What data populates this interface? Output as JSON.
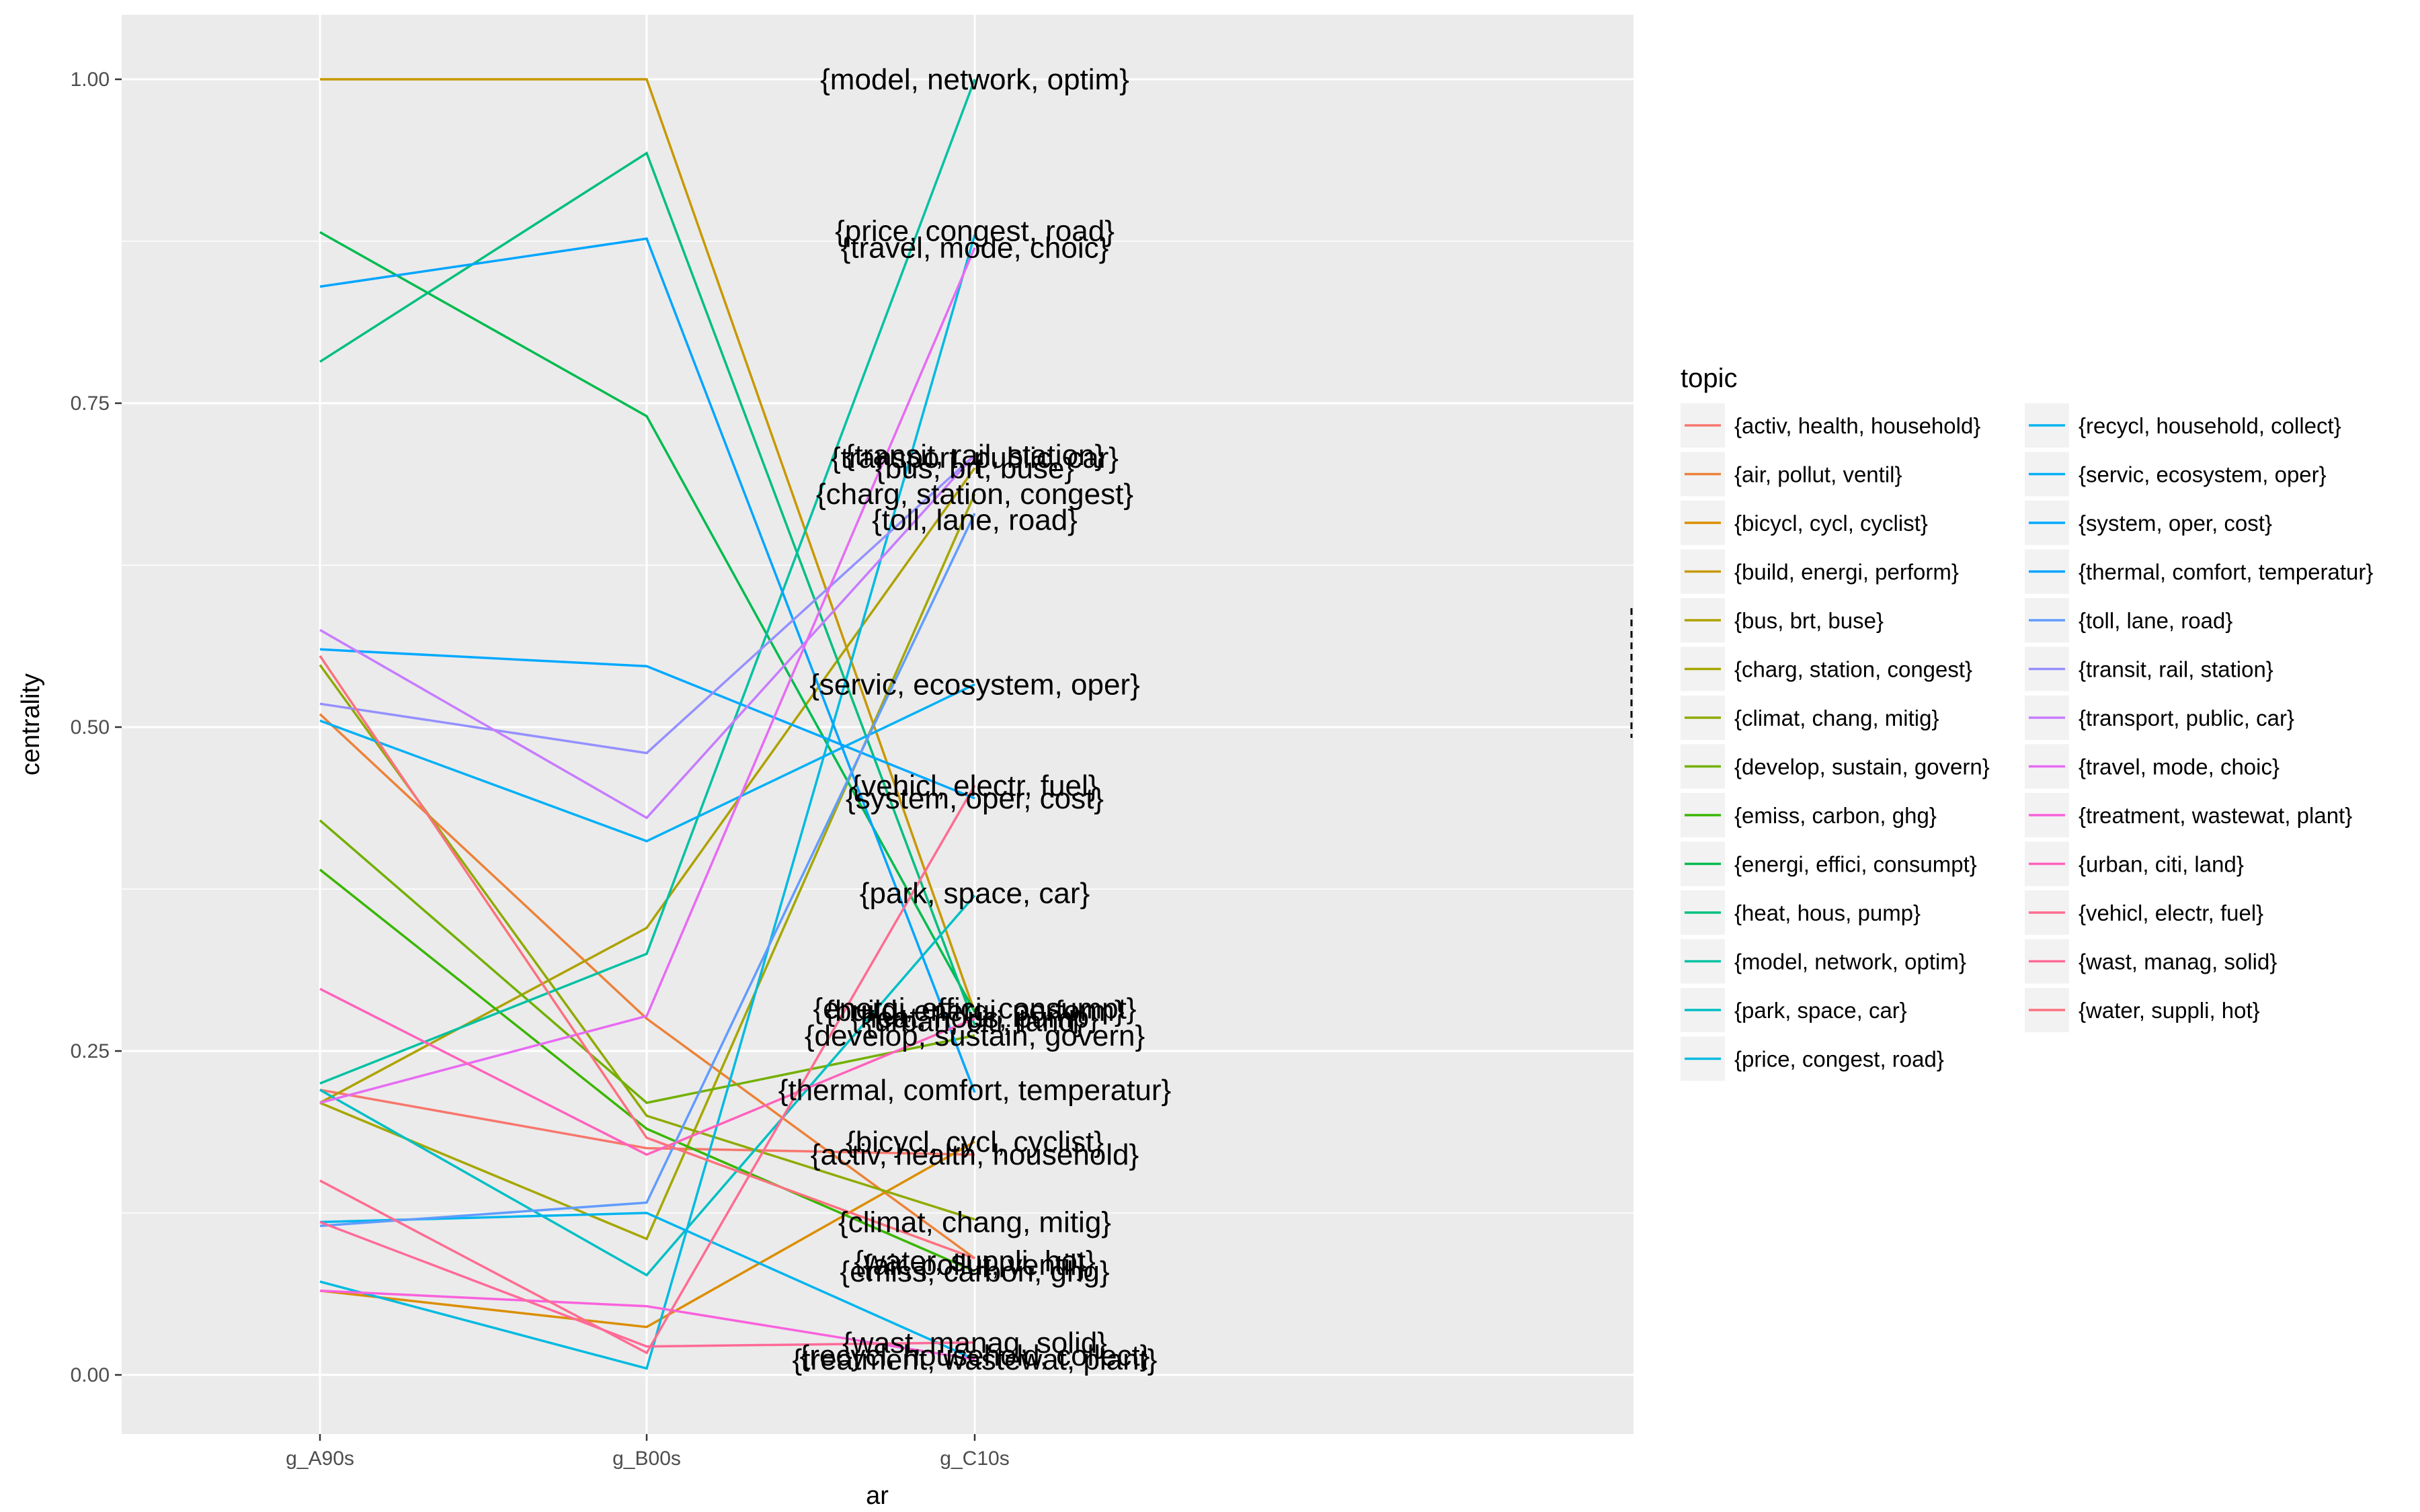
{
  "chart_data": {
    "type": "line",
    "title": "",
    "xlabel": "ar",
    "ylabel": "centrality",
    "categories": [
      "g_A90s",
      "g_B00s",
      "g_C10s"
    ],
    "ylim": [
      -0.045,
      1.05
    ],
    "yticks": [
      "0.00",
      "0.25",
      "0.50",
      "0.75",
      "1.00"
    ],
    "legend_title": "topic",
    "legend_position": "right",
    "grid": true,
    "series": [
      {
        "name": "{activ, health, household}",
        "color": "#F8766D",
        "values": [
          0.22,
          0.175,
          0.17
        ]
      },
      {
        "name": "{air, pollut, ventil}",
        "color": "#EC8239",
        "values": [
          0.51,
          0.275,
          0.09
        ]
      },
      {
        "name": "{bicycl, cycl, cyclist}",
        "color": "#DB8E00",
        "values": [
          0.065,
          0.037,
          0.18
        ]
      },
      {
        "name": "{build, energi, perform}",
        "color": "#C79800",
        "values": [
          1.0,
          1.0,
          0.28
        ]
      },
      {
        "name": "{bus, brt, buse}",
        "color": "#AEA200",
        "values": [
          0.21,
          0.345,
          0.7
        ]
      },
      {
        "name": "{charg, station, congest}",
        "color": "#A5A700",
        "values": [
          0.21,
          0.105,
          0.68
        ]
      },
      {
        "name": "{climat, chang, mitig}",
        "color": "#8FAA00",
        "values": [
          0.548,
          0.2,
          0.12
        ]
      },
      {
        "name": "{develop, sustain, govern}",
        "color": "#72B000",
        "values": [
          0.428,
          0.21,
          0.262
        ]
      },
      {
        "name": "{emiss, carbon, ghg}",
        "color": "#39B600",
        "values": [
          0.39,
          0.19,
          0.08
        ]
      },
      {
        "name": "{energi, effici, consumpt}",
        "color": "#00BB4E",
        "values": [
          0.882,
          0.74,
          0.28
        ]
      },
      {
        "name": "{heat, hous, pump}",
        "color": "#00BF7D",
        "values": [
          0.782,
          0.943,
          0.27
        ]
      },
      {
        "name": "{model, network, optim}",
        "color": "#00C1A3",
        "values": [
          0.225,
          0.325,
          1.0
        ]
      },
      {
        "name": "{park, space, car}",
        "color": "#00BFC4",
        "values": [
          0.22,
          0.077,
          0.37
        ]
      },
      {
        "name": "{price, congest, road}",
        "color": "#00BAE0",
        "values": [
          0.072,
          0.005,
          0.88
        ]
      },
      {
        "name": "{recycl, household, collect}",
        "color": "#00B5EE",
        "values": [
          0.118,
          0.125,
          0.012
        ]
      },
      {
        "name": "{servic, ecosystem, oper}",
        "color": "#00B0F6",
        "values": [
          0.505,
          0.412,
          0.533
        ]
      },
      {
        "name": "{system, oper, cost}",
        "color": "#00A9FF",
        "values": [
          0.56,
          0.547,
          0.445
        ]
      },
      {
        "name": "{thermal, comfort, temperatur}",
        "color": "#00A5FF",
        "values": [
          0.84,
          0.877,
          0.218
        ]
      },
      {
        "name": "{toll, lane, road}",
        "color": "#619CFF",
        "values": [
          0.115,
          0.133,
          0.665
        ]
      },
      {
        "name": "{transit, rail, station}",
        "color": "#9590FF",
        "values": [
          0.518,
          0.48,
          0.71
        ]
      },
      {
        "name": "{transport, public, car}",
        "color": "#C77CFF",
        "values": [
          0.575,
          0.43,
          0.71
        ]
      },
      {
        "name": "{travel, mode, choic}",
        "color": "#E76BF3",
        "values": [
          0.21,
          0.277,
          0.87
        ]
      },
      {
        "name": "{treatment, wastewat, plant}",
        "color": "#F962DD",
        "values": [
          0.065,
          0.053,
          0.012
        ]
      },
      {
        "name": "{urban, citi, land}",
        "color": "#FF62BC",
        "values": [
          0.298,
          0.17,
          0.275
        ]
      },
      {
        "name": "{vehicl, electr, fuel}",
        "color": "#FF6C91",
        "values": [
          0.15,
          0.017,
          0.455
        ]
      },
      {
        "name": "{wast, manag, solid}",
        "color": "#FF6A98",
        "values": [
          0.118,
          0.022,
          0.025
        ]
      },
      {
        "name": "{water, suppli, hot}",
        "color": "#FC717F",
        "values": [
          0.555,
          0.183,
          0.09
        ]
      }
    ],
    "end_labels": [
      {
        "text": "{model, network, optim}",
        "value": 1.0
      },
      {
        "text": "{price, congest, road}",
        "value": 0.883
      },
      {
        "text": "{travel, mode, choic}",
        "value": 0.87
      },
      {
        "text": "{transit, rail, station}",
        "value": 0.71
      },
      {
        "text": "{transport, public, car}",
        "value": 0.708
      },
      {
        "text": "{bus, brt, buse}",
        "value": 0.7
      },
      {
        "text": "{charg, station, congest}",
        "value": 0.68
      },
      {
        "text": "{toll, lane, road}",
        "value": 0.66
      },
      {
        "text": "{servic, ecosystem, oper}",
        "value": 0.533
      },
      {
        "text": "{vehicl, electr, fuel}",
        "value": 0.455
      },
      {
        "text": "{system, oper, cost}",
        "value": 0.445
      },
      {
        "text": "{park, space, car}",
        "value": 0.372
      },
      {
        "text": "{energi, effici, consumpt}",
        "value": 0.283
      },
      {
        "text": "{build, energi, perform}",
        "value": 0.281
      },
      {
        "text": "{heat, hous, pump}",
        "value": 0.276
      },
      {
        "text": "{urban, citi, land}",
        "value": 0.273
      },
      {
        "text": "{develop, sustain, govern}",
        "value": 0.262
      },
      {
        "text": "{thermal, comfort, temperatur}",
        "value": 0.22
      },
      {
        "text": "{bicycl, cycl, cyclist}",
        "value": 0.18
      },
      {
        "text": "{activ, health, household}",
        "value": 0.17
      },
      {
        "text": "{climat, chang, mitig}",
        "value": 0.118
      },
      {
        "text": "{water, suppli, hot}",
        "value": 0.088
      },
      {
        "text": "{air, pollut, ventil}",
        "value": 0.085
      },
      {
        "text": "{emiss, carbon, ghg}",
        "value": 0.08
      },
      {
        "text": "{wast, manag, solid}",
        "value": 0.025
      },
      {
        "text": "{recycl, household, collect}",
        "value": 0.015
      },
      {
        "text": "{treatment, wastewat, plant}",
        "value": 0.012
      }
    ]
  }
}
